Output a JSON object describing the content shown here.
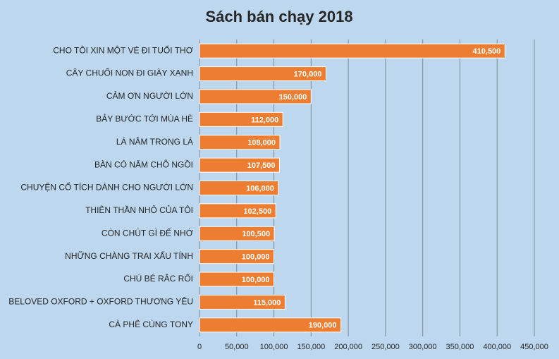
{
  "chart_data": {
    "type": "bar",
    "orientation": "horizontal",
    "title": "Sách bán chạy 2018",
    "categories": [
      "CHO TÔI XIN MỘT VÉ ĐI TUỔI THƠ",
      "CÂY CHUỐI NON ĐI GIÀY XANH",
      "CẢM ƠN NGƯỜI LỚN",
      "BẢY BƯỚC TỚI MÙA HÈ",
      "LÁ NẰM TRONG LÁ",
      "BÀN CÓ NĂM CHỖ NGỒI",
      "CHUYỆN CỔ TÍCH DÀNH CHO NGƯỜI LỚN",
      "THIÊN THẦN NHỎ CỦA TÔI",
      "CÒN CHÚT GÌ ĐỂ NHỚ",
      "NHỮNG CHÀNG TRAI XẤU TÍNH",
      "CHÚ BÉ RẮC RỐI",
      "BELOVED OXFORD + OXFORD THƯƠNG YÊU",
      "CÀ PHÊ CÙNG TONY"
    ],
    "values": [
      410500,
      170000,
      150000,
      112000,
      108000,
      107500,
      106000,
      102500,
      100500,
      100000,
      100000,
      115000,
      190000
    ],
    "value_labels": [
      "410,500",
      "170,000",
      "150,000",
      "112,000",
      "108,000",
      "107,500",
      "106,000",
      "102,500",
      "100,500",
      "100,000",
      "100,000",
      "115,000",
      "190,000"
    ],
    "color": "#ed7d31",
    "xlim": [
      0,
      450000
    ],
    "xticks": [
      0,
      {
        "value": 50000,
        "label": "50,000"
      },
      {
        "value": 100000,
        "label": "100,000"
      },
      {
        "value": 150000,
        "label": "150,000"
      },
      {
        "value": 200000,
        "label": "200,000"
      },
      {
        "value": 250000,
        "label": "250,000"
      },
      {
        "value": 300000,
        "label": "300,000"
      },
      {
        "value": 350000,
        "label": "350,000"
      },
      {
        "value": 400000,
        "label": "400,000"
      },
      {
        "value": 450000,
        "label": "450,000"
      }
    ],
    "grid": true
  }
}
